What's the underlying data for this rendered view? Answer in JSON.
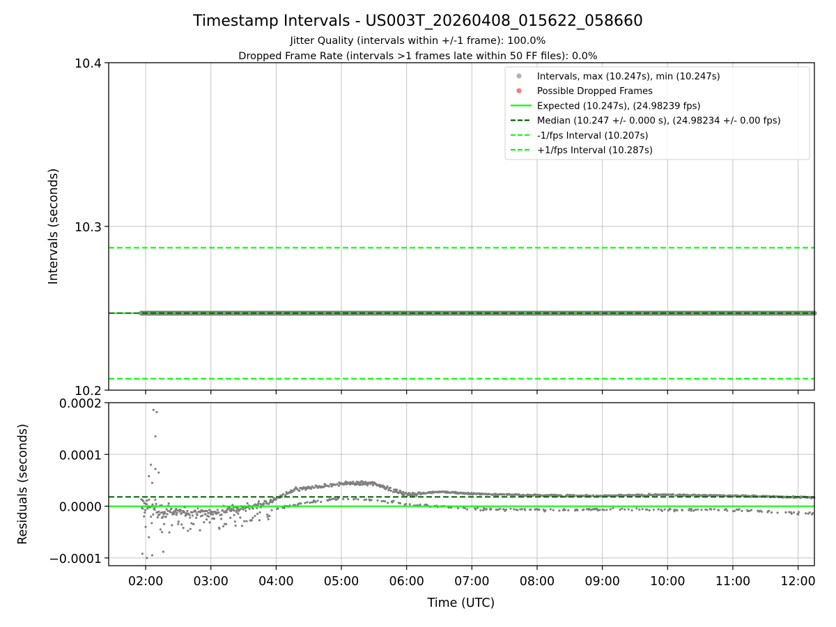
{
  "colors": {
    "scatter": "#808080",
    "dropped": "#ff0000",
    "expected": "#00ff00",
    "median": "#006400",
    "bound": "#00ff00",
    "grid": "#b0b0b0",
    "axis": "#000000"
  },
  "chart_data": [
    {
      "type": "scatter",
      "title": "Timestamp Intervals - US003T_20260408_015622_058660",
      "subtitle_1": "Jitter Quality (intervals within +/-1 frame): 100.0%",
      "subtitle_2": "Dropped Frame Rate (intervals >1 frames late within 50 FF files): 0.0%",
      "ylabel": "Intervals (seconds)",
      "xlim": [
        1.4333,
        12.25
      ],
      "ylim": [
        10.2,
        10.4
      ],
      "yticks": [
        10.2,
        10.3,
        10.4
      ],
      "ytick_labels": [
        "10.2",
        "10.3",
        "10.4"
      ],
      "grid": true,
      "legend_position": "top-right",
      "data_x_range": [
        1.9333,
        12.25
      ],
      "data_value": 10.247,
      "expected": 10.247,
      "median": 10.247,
      "lower_bound": 10.207,
      "upper_bound": 10.287,
      "legend": [
        {
          "label": "Intervals, max (10.247s), min (10.247s)",
          "kind": "dot",
          "color": "#a9a9a9"
        },
        {
          "label": "Possible Dropped Frames",
          "kind": "dot",
          "color": "#ff6b6b"
        },
        {
          "label": "Expected (10.247s), (24.98239 fps)",
          "kind": "solid",
          "color": "#00ff00"
        },
        {
          "label": "Median (10.247 +/- 0.000 s), (24.98234 +/- 0.00 fps)",
          "kind": "dashed",
          "color": "#006400"
        },
        {
          "label": "-1/fps Interval (10.207s)",
          "kind": "dashed",
          "color": "#00ff00"
        },
        {
          "label": "+1/fps Interval (10.287s)",
          "kind": "dashed",
          "color": "#00ff00"
        }
      ]
    },
    {
      "type": "scatter",
      "xlabel": "Time (UTC)",
      "ylabel": "Residuals (seconds)",
      "xlim": [
        1.4333,
        12.25
      ],
      "ylim": [
        -0.000115,
        0.0002
      ],
      "yticks": [
        -0.0001,
        0.0,
        0.0001,
        0.0002
      ],
      "ytick_labels": [
        "−0.0001",
        "0.0000",
        "0.0001",
        "0.0002"
      ],
      "xticks": [
        2,
        3,
        4,
        5,
        6,
        7,
        8,
        9,
        10,
        11,
        12
      ],
      "xtick_labels": [
        "02:00",
        "03:00",
        "04:00",
        "05:00",
        "06:00",
        "07:00",
        "08:00",
        "09:00",
        "10:00",
        "11:00",
        "12:00"
      ],
      "grid": true,
      "zero_line": 0.0,
      "median_line": 1.8e-05,
      "trend_knots": [
        [
          1.93,
          8e-06
        ],
        [
          2.2,
          -1e-05
        ],
        [
          2.5,
          -1.2e-05
        ],
        [
          3.0,
          -1.2e-05
        ],
        [
          3.5,
          -4e-06
        ],
        [
          3.9,
          8e-06
        ],
        [
          4.3,
          3.2e-05
        ],
        [
          4.8,
          4e-05
        ],
        [
          5.0,
          4.4e-05
        ],
        [
          5.5,
          4.4e-05
        ],
        [
          5.6,
          4e-05
        ],
        [
          6.0,
          2.2e-05
        ],
        [
          6.5,
          2.8e-05
        ],
        [
          7.0,
          2.4e-05
        ],
        [
          8.0,
          2.1e-05
        ],
        [
          9.0,
          2e-05
        ],
        [
          10.0,
          2.2e-05
        ],
        [
          11.0,
          2e-05
        ],
        [
          12.25,
          1.7e-05
        ]
      ],
      "low_knots": [
        [
          2.3,
          -3.5e-05
        ],
        [
          3.0,
          -2.5e-05
        ],
        [
          3.6,
          -1.5e-05
        ],
        [
          4.4,
          5e-06
        ],
        [
          5.0,
          1.5e-05
        ],
        [
          5.5,
          1.2e-05
        ],
        [
          6.0,
          4e-06
        ],
        [
          6.6,
          -2e-06
        ],
        [
          7.2,
          -6e-06
        ],
        [
          8.0,
          -7e-06
        ],
        [
          9.0,
          -6e-06
        ],
        [
          10.0,
          -7e-06
        ],
        [
          11.0,
          -7e-06
        ],
        [
          12.25,
          -1.5e-05
        ]
      ],
      "outliers": [
        [
          2.12,
          0.000186
        ],
        [
          2.17,
          0.000182
        ],
        [
          2.15,
          0.000135
        ],
        [
          2.08,
          8e-05
        ],
        [
          2.15,
          7.2e-05
        ],
        [
          2.2,
          6.5e-05
        ],
        [
          2.05,
          5.8e-05
        ],
        [
          2.1,
          4.5e-05
        ],
        [
          1.95,
          -9.2e-05
        ],
        [
          2.02,
          -0.0001
        ],
        [
          2.1,
          -9.5e-05
        ],
        [
          2.27,
          -8.8e-05
        ],
        [
          2.05,
          -6e-05
        ],
        [
          2.0,
          -4e-05
        ],
        [
          2.25,
          -5e-05
        ]
      ]
    }
  ]
}
